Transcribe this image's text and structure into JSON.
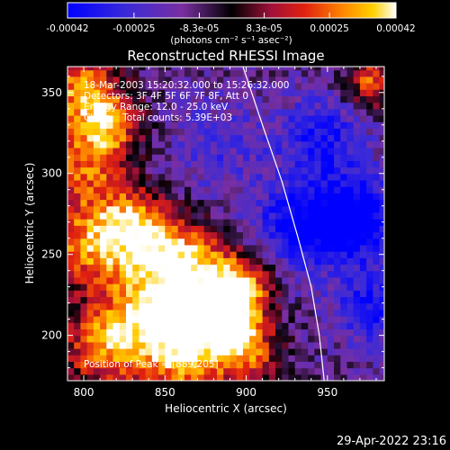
{
  "chart_data": {
    "type": "heatmap",
    "title": "Reconstructed RHESSI Image",
    "xlabel": "Heliocentric X (arcsec)",
    "ylabel": "Heliocentric Y (arcsec)",
    "xlim": [
      790,
      985
    ],
    "ylim": [
      172,
      366
    ],
    "xticks": [
      800,
      850,
      900,
      950
    ],
    "yticks": [
      200,
      250,
      300,
      350
    ],
    "colorbar": {
      "ticks": [
        "-0.00042",
        "-0.00025",
        "-8.3e-05",
        "8.3e-05",
        "0.00025",
        "0.00042"
      ],
      "tick_values": [
        -0.00042,
        -0.00025,
        -8.3e-05,
        8.3e-05,
        0.00025,
        0.00042
      ],
      "range": [
        -0.00042,
        0.00042
      ],
      "unit_label": "(photons cm⁻² s⁻¹ asec⁻²)"
    },
    "annotations": [
      "18-Mar-2003 15:20:32.000 to 15:26:32.000",
      "Detectors: 3F 4F 5F 6F 7F 8F, Att 0",
      "Energy Range: 12.0 - 25.0 keV",
      "Clean    Total counts: 5.39E+03"
    ],
    "peak_label": "Position of Peak = [889,205]",
    "limb_curve": [
      [
        898,
        366
      ],
      [
        910,
        330
      ],
      [
        922,
        295
      ],
      [
        932,
        260
      ],
      [
        940,
        230
      ],
      [
        945,
        200
      ],
      [
        948,
        172
      ]
    ],
    "blobs": [
      {
        "x": 795,
        "y": 350,
        "amp": 0.9,
        "s": 18
      },
      {
        "x": 800,
        "y": 305,
        "amp": 0.8,
        "s": 18
      },
      {
        "x": 815,
        "y": 330,
        "amp": 0.7,
        "s": 14
      },
      {
        "x": 800,
        "y": 255,
        "amp": 0.9,
        "s": 20
      },
      {
        "x": 830,
        "y": 265,
        "amp": 1.0,
        "s": 16
      },
      {
        "x": 860,
        "y": 245,
        "amp": 1.0,
        "s": 18
      },
      {
        "x": 840,
        "y": 215,
        "amp": 1.1,
        "s": 20
      },
      {
        "x": 885,
        "y": 210,
        "amp": 1.25,
        "s": 16
      },
      {
        "x": 895,
        "y": 230,
        "amp": 0.9,
        "s": 14
      },
      {
        "x": 860,
        "y": 185,
        "amp": 1.0,
        "s": 18
      },
      {
        "x": 810,
        "y": 190,
        "amp": 0.9,
        "s": 18
      },
      {
        "x": 900,
        "y": 185,
        "amp": 0.7,
        "s": 14
      },
      {
        "x": 975,
        "y": 355,
        "amp": 0.8,
        "s": 12
      },
      {
        "x": 930,
        "y": 265,
        "amp": -0.7,
        "s": 20
      },
      {
        "x": 965,
        "y": 270,
        "amp": -0.9,
        "s": 18
      },
      {
        "x": 945,
        "y": 320,
        "amp": -0.6,
        "s": 18
      },
      {
        "x": 975,
        "y": 215,
        "amp": -0.6,
        "s": 16
      },
      {
        "x": 880,
        "y": 315,
        "amp": -0.3,
        "s": 22
      }
    ]
  },
  "footer": {
    "timestamp": "29-Apr-2022 23:16"
  }
}
